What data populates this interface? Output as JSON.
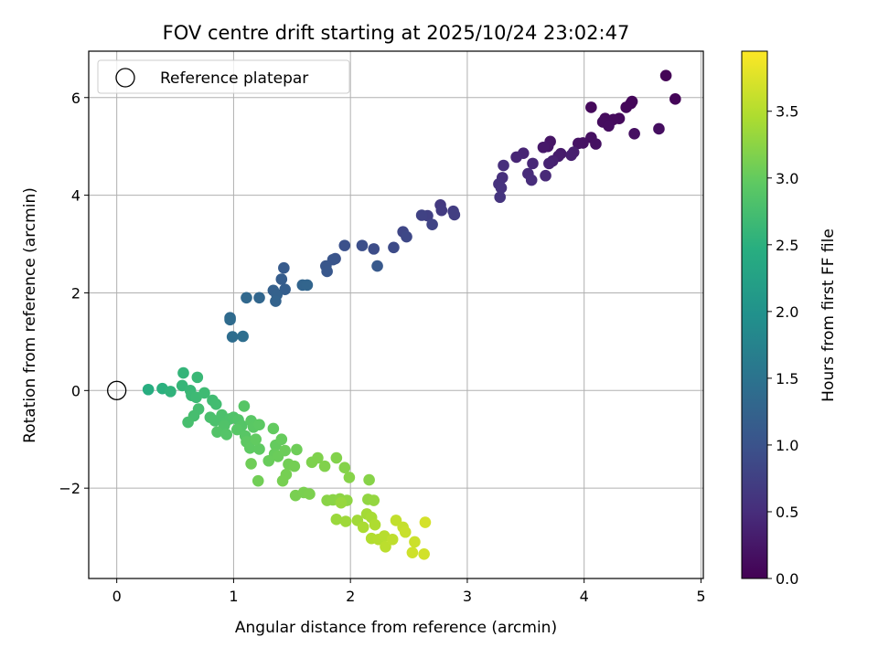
{
  "chart_data": {
    "type": "scatter",
    "title": "FOV centre drift starting at 2025/10/24 23:02:47",
    "xlabel": "Angular distance from reference (arcmin)",
    "ylabel": "Rotation from reference (arcmin)",
    "xlim": [
      -0.24,
      5.02
    ],
    "ylim": [
      -3.85,
      6.95
    ],
    "xticks": [
      0,
      1,
      2,
      3,
      4,
      5
    ],
    "yticks": [
      -2,
      0,
      2,
      4,
      6
    ],
    "ytick_labels": [
      "−2",
      "0",
      "2",
      "4",
      "6"
    ],
    "grid": true,
    "legend": {
      "position": "top-left",
      "entries": [
        "Reference platepar"
      ]
    },
    "reference_point": {
      "x": 0,
      "y": 0
    },
    "colorbar": {
      "label": "Hours from first FF file",
      "range": [
        0.0,
        3.95
      ],
      "ticks": [
        0.0,
        0.5,
        1.0,
        1.5,
        2.0,
        2.5,
        3.0,
        3.5
      ],
      "tick_labels": [
        "0.0",
        "0.5",
        "1.0",
        "1.5",
        "2.0",
        "2.5",
        "3.0",
        "3.5"
      ],
      "colormap": "viridis"
    },
    "points": [
      [
        4.7,
        6.45,
        0.03
      ],
      [
        4.78,
        5.97,
        0.05
      ],
      [
        4.41,
        5.92,
        0.06
      ],
      [
        4.4,
        5.88,
        0.07
      ],
      [
        4.36,
        5.8,
        0.08
      ],
      [
        4.06,
        5.8,
        0.09
      ],
      [
        4.3,
        5.57,
        0.1
      ],
      [
        4.25,
        5.55,
        0.11
      ],
      [
        4.18,
        5.57,
        0.12
      ],
      [
        4.16,
        5.5,
        0.13
      ],
      [
        4.21,
        5.42,
        0.14
      ],
      [
        4.64,
        5.36,
        0.15
      ],
      [
        4.43,
        5.26,
        0.16
      ],
      [
        4.06,
        5.18,
        0.17
      ],
      [
        4.1,
        5.05,
        0.18
      ],
      [
        3.99,
        5.07,
        0.19
      ],
      [
        3.95,
        5.06,
        0.2
      ],
      [
        3.71,
        5.1,
        0.22
      ],
      [
        3.69,
        5.0,
        0.24
      ],
      [
        3.65,
        4.98,
        0.26
      ],
      [
        3.8,
        4.85,
        0.28
      ],
      [
        3.78,
        4.8,
        0.3
      ],
      [
        3.91,
        4.88,
        0.32
      ],
      [
        3.89,
        4.82,
        0.34
      ],
      [
        3.73,
        4.7,
        0.36
      ],
      [
        3.7,
        4.65,
        0.38
      ],
      [
        3.48,
        4.86,
        0.4
      ],
      [
        3.42,
        4.78,
        0.42
      ],
      [
        3.56,
        4.65,
        0.44
      ],
      [
        3.67,
        4.4,
        0.46
      ],
      [
        3.52,
        4.44,
        0.48
      ],
      [
        3.55,
        4.31,
        0.5
      ],
      [
        3.31,
        4.61,
        0.52
      ],
      [
        3.3,
        4.36,
        0.54
      ],
      [
        3.27,
        4.23,
        0.56
      ],
      [
        3.29,
        4.15,
        0.58
      ],
      [
        3.28,
        3.96,
        0.6
      ],
      [
        2.77,
        3.8,
        0.65
      ],
      [
        2.78,
        3.69,
        0.68
      ],
      [
        2.88,
        3.67,
        0.7
      ],
      [
        2.89,
        3.6,
        0.72
      ],
      [
        2.66,
        3.58,
        0.75
      ],
      [
        2.61,
        3.59,
        0.78
      ],
      [
        2.7,
        3.4,
        0.8
      ],
      [
        2.45,
        3.25,
        0.83
      ],
      [
        2.48,
        3.15,
        0.86
      ],
      [
        2.37,
        2.93,
        0.9
      ],
      [
        2.2,
        2.9,
        0.92
      ],
      [
        2.1,
        2.97,
        0.95
      ],
      [
        1.95,
        2.97,
        0.98
      ],
      [
        1.87,
        2.7,
        1.0
      ],
      [
        1.85,
        2.68,
        1.03
      ],
      [
        1.79,
        2.55,
        1.05
      ],
      [
        1.8,
        2.44,
        1.07
      ],
      [
        2.23,
        2.55,
        1.1
      ],
      [
        1.43,
        2.51,
        1.12
      ],
      [
        1.41,
        2.28,
        1.15
      ],
      [
        1.44,
        2.07,
        1.17
      ],
      [
        1.34,
        2.05,
        1.2
      ],
      [
        1.37,
        1.96,
        1.22
      ],
      [
        1.36,
        1.83,
        1.25
      ],
      [
        1.59,
        2.16,
        1.27
      ],
      [
        1.63,
        2.16,
        1.28
      ],
      [
        1.22,
        1.9,
        1.3
      ],
      [
        1.11,
        1.9,
        1.32
      ],
      [
        0.97,
        1.49,
        1.35
      ],
      [
        0.97,
        1.45,
        1.37
      ],
      [
        0.99,
        1.1,
        1.4
      ],
      [
        1.08,
        1.11,
        1.42
      ],
      [
        0.27,
        0.02,
        2.45
      ],
      [
        0.39,
        0.04,
        2.5
      ],
      [
        0.46,
        -0.02,
        2.55
      ],
      [
        0.57,
        0.36,
        2.58
      ],
      [
        0.56,
        0.1,
        2.6
      ],
      [
        0.63,
        0.0,
        2.62
      ],
      [
        0.69,
        0.27,
        2.63
      ],
      [
        0.64,
        -0.1,
        2.65
      ],
      [
        0.68,
        -0.14,
        2.67
      ],
      [
        0.75,
        -0.05,
        2.68
      ],
      [
        0.82,
        -0.2,
        2.7
      ],
      [
        0.85,
        -0.28,
        2.72
      ],
      [
        0.7,
        -0.38,
        2.74
      ],
      [
        0.66,
        -0.52,
        2.75
      ],
      [
        0.61,
        -0.65,
        2.76
      ],
      [
        0.8,
        -0.55,
        2.78
      ],
      [
        0.84,
        -0.62,
        2.79
      ],
      [
        0.9,
        -0.5,
        2.8
      ],
      [
        0.93,
        -0.65,
        2.81
      ],
      [
        0.97,
        -0.58,
        2.82
      ],
      [
        1.0,
        -0.55,
        2.83
      ],
      [
        0.92,
        -0.72,
        2.84
      ],
      [
        1.04,
        -0.6,
        2.85
      ],
      [
        0.86,
        -0.85,
        2.86
      ],
      [
        0.94,
        -0.9,
        2.87
      ],
      [
        1.07,
        -0.72,
        2.88
      ],
      [
        1.09,
        -0.32,
        2.89
      ],
      [
        1.03,
        -0.8,
        2.9
      ],
      [
        1.1,
        -0.93,
        2.91
      ],
      [
        1.15,
        -0.62,
        2.92
      ],
      [
        1.17,
        -0.75,
        2.93
      ],
      [
        1.22,
        -0.7,
        2.94
      ],
      [
        1.11,
        -1.05,
        2.95
      ],
      [
        1.14,
        -1.18,
        2.96
      ],
      [
        1.22,
        -1.2,
        2.97
      ],
      [
        1.19,
        -1.0,
        2.98
      ],
      [
        1.34,
        -0.78,
        2.99
      ],
      [
        1.36,
        -1.12,
        3.0
      ],
      [
        1.41,
        -1.0,
        3.01
      ],
      [
        1.35,
        -1.3,
        3.02
      ],
      [
        1.3,
        -1.44,
        3.03
      ],
      [
        1.38,
        -1.35,
        3.04
      ],
      [
        1.44,
        -1.23,
        3.05
      ],
      [
        1.54,
        -1.21,
        3.06
      ],
      [
        1.15,
        -1.5,
        3.07
      ],
      [
        1.21,
        -1.85,
        3.08
      ],
      [
        1.47,
        -1.51,
        3.09
      ],
      [
        1.52,
        -1.55,
        3.1
      ],
      [
        1.45,
        -1.72,
        3.11
      ],
      [
        1.42,
        -1.85,
        3.12
      ],
      [
        1.53,
        -2.15,
        3.13
      ],
      [
        1.6,
        -2.09,
        3.14
      ],
      [
        1.65,
        -2.12,
        3.15
      ],
      [
        1.67,
        -1.47,
        3.16
      ],
      [
        1.72,
        -1.38,
        3.17
      ],
      [
        1.78,
        -1.55,
        3.18
      ],
      [
        1.88,
        -1.38,
        3.19
      ],
      [
        1.95,
        -1.58,
        3.2
      ],
      [
        1.99,
        -1.78,
        3.21
      ],
      [
        2.16,
        -1.83,
        3.22
      ],
      [
        1.8,
        -2.25,
        3.23
      ],
      [
        1.85,
        -2.24,
        3.24
      ],
      [
        1.91,
        -2.22,
        3.25
      ],
      [
        1.97,
        -2.25,
        3.27
      ],
      [
        2.15,
        -2.23,
        3.28
      ],
      [
        2.2,
        -2.25,
        3.3
      ],
      [
        1.92,
        -2.3,
        3.32
      ],
      [
        1.88,
        -2.64,
        3.34
      ],
      [
        1.96,
        -2.68,
        3.36
      ],
      [
        2.06,
        -2.66,
        3.38
      ],
      [
        2.14,
        -2.53,
        3.4
      ],
      [
        2.18,
        -2.6,
        3.42
      ],
      [
        2.11,
        -2.8,
        3.44
      ],
      [
        2.21,
        -2.75,
        3.46
      ],
      [
        2.18,
        -3.03,
        3.48
      ],
      [
        2.24,
        -3.05,
        3.5
      ],
      [
        2.29,
        -2.98,
        3.52
      ],
      [
        2.3,
        -3.2,
        3.54
      ],
      [
        2.36,
        -3.05,
        3.56
      ],
      [
        2.39,
        -2.66,
        3.58
      ],
      [
        2.45,
        -2.8,
        3.6
      ],
      [
        2.47,
        -2.9,
        3.62
      ],
      [
        2.55,
        -3.1,
        3.64
      ],
      [
        2.53,
        -3.32,
        3.66
      ],
      [
        2.63,
        -3.35,
        3.68
      ],
      [
        2.64,
        -2.7,
        3.7
      ]
    ]
  }
}
